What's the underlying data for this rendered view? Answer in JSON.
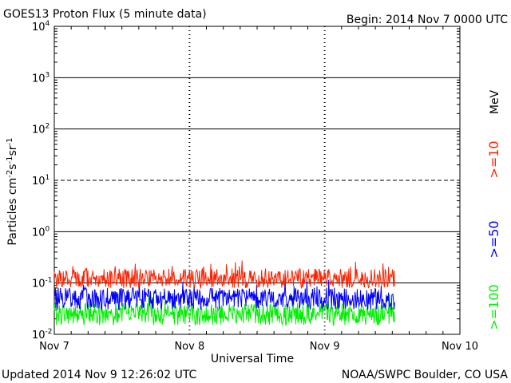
{
  "header": {
    "title": "GOES13 Proton Flux (5 minute data)",
    "begin": "Begin: 2014 Nov 7 0000 UTC"
  },
  "footer": {
    "updated": "Updated 2014 Nov  9 12:26:02 UTC",
    "credit": "NOAA/SWPC Boulder, CO USA"
  },
  "chart_data": {
    "type": "line",
    "title": "GOES13 Proton Flux (5 minute data)",
    "xlabel": "Universal Time",
    "ylabel": "Particles cm-2 s-1 sr-1",
    "yscale": "log",
    "ylim": [
      0.01,
      10000
    ],
    "xlim": [
      "2014-11-07 00:00",
      "2014-11-10 00:00"
    ],
    "x_tick_labels": [
      "Nov 7",
      "Nov 8",
      "Nov 9",
      "Nov 10"
    ],
    "y_ticks": [
      {
        "base": "10",
        "exp": "4"
      },
      {
        "base": "10",
        "exp": "3"
      },
      {
        "base": "10",
        "exp": "2"
      },
      {
        "base": "10",
        "exp": "1"
      },
      {
        "base": "10",
        "exp": "0"
      },
      {
        "base": "10",
        "exp": "-1"
      },
      {
        "base": "10",
        "exp": "-2"
      }
    ],
    "grid": "solid horizontal lines at each decade, dashed at 10^1; dotted vertical markers at each day",
    "legend_placement": "right",
    "units_label": "MeV",
    "series": [
      {
        "name": ">=10",
        "color": "#ff2200",
        "approx_level": 0.12,
        "range": [
          0.08,
          0.28
        ]
      },
      {
        "name": ">=50",
        "color": "#0000ff",
        "approx_level": 0.05,
        "range": [
          0.03,
          0.12
        ]
      },
      {
        "name": ">=100",
        "color": "#00ee00",
        "approx_level": 0.025,
        "range": [
          0.015,
          0.06
        ]
      }
    ],
    "data_end": "2014-11-09 12:26"
  }
}
